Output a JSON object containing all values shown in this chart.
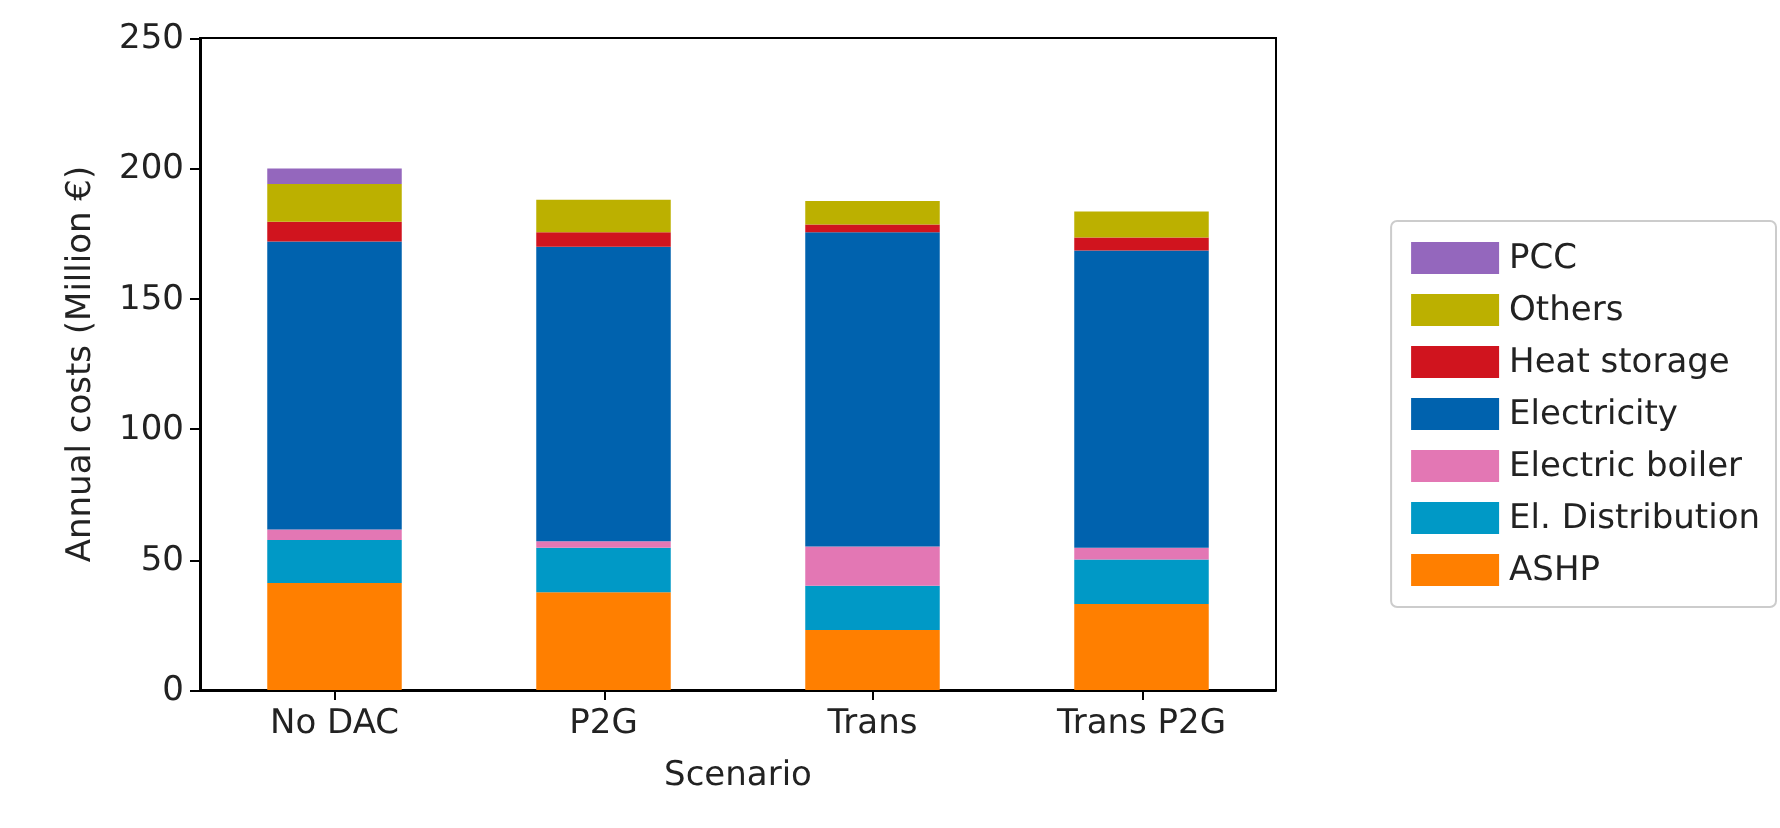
{
  "chart_data": {
    "type": "bar",
    "stacked": true,
    "xlabel": "Scenario",
    "ylabel": "Annual costs (Million €)",
    "categories": [
      "No DAC",
      "P2G",
      "Trans",
      "Trans P2G"
    ],
    "series": [
      {
        "name": "ASHP",
        "color": "#ff7f00",
        "values": [
          41,
          37.5,
          23,
          33
        ]
      },
      {
        "name": "El. Distribution",
        "color": "#0099c6",
        "values": [
          16.5,
          17,
          17,
          17
        ]
      },
      {
        "name": "Electric boiler",
        "color": "#e377b4",
        "values": [
          4,
          2.5,
          15,
          4.5
        ]
      },
      {
        "name": "Electricity",
        "color": "#0062ae",
        "values": [
          110.5,
          113,
          120.5,
          114
        ]
      },
      {
        "name": "Heat storage",
        "color": "#d0141e",
        "values": [
          7.5,
          5.5,
          3,
          5
        ]
      },
      {
        "name": "Others",
        "color": "#bcb000",
        "values": [
          14.5,
          12.5,
          9,
          10
        ]
      },
      {
        "name": "PCC",
        "color": "#9467bd",
        "values": [
          6,
          0,
          0,
          0
        ]
      }
    ],
    "ylim": [
      0,
      250
    ],
    "yticks": [
      0,
      50,
      100,
      150,
      200,
      250
    ],
    "grid": false,
    "legend": "right"
  }
}
